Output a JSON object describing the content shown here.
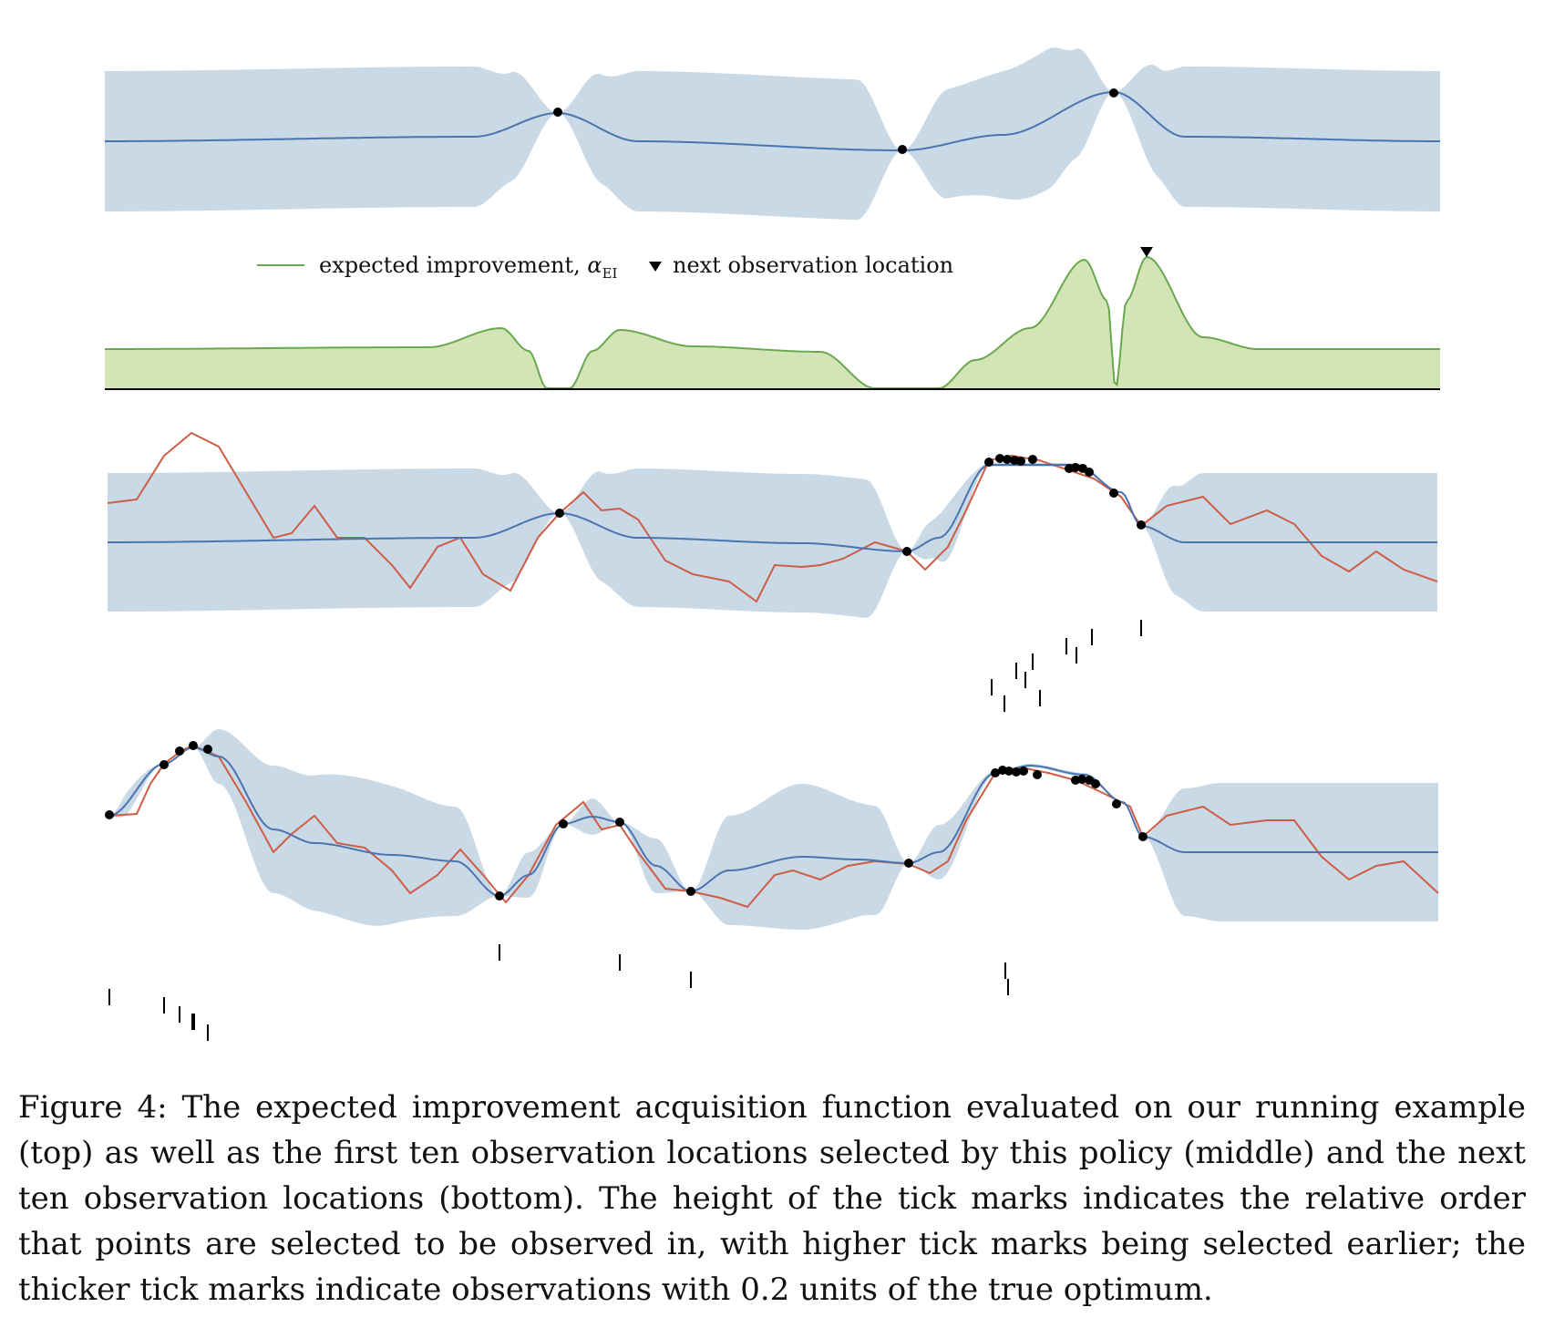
{
  "legend": {
    "ei_label": "expected improvement, ",
    "ei_symbol": "α",
    "ei_subscript": "EI",
    "next_label": "next observation location"
  },
  "caption": {
    "label": "Figure 4:",
    "text": "The expected improvement acquisition function evaluated on our running example (top) as well as the first ten observation locations selected by this policy (middle) and the next ten observation locations (bottom). The height of the tick marks indicates the relative order that points are selected to be observed in, with higher tick marks being selected earlier; the thicker tick marks indicate observations with 0.2 units of the true optimum."
  },
  "colors": {
    "band": "#c9dae6",
    "mean": "#4a74b0",
    "objective": "#cf5c45",
    "ei_fill": "#d3e5b7",
    "ei_line": "#6aa84f",
    "point": "#000000"
  },
  "chart_data": [
    {
      "panel": "top",
      "type": "line",
      "description_free": true,
      "x_range": [
        0,
        1
      ],
      "observations": [
        [
          0.342,
          0.6
        ],
        [
          0.6,
          -0.25
        ],
        [
          0.758,
          1.0
        ]
      ]
    },
    {
      "panel": "acquisition",
      "type": "area",
      "series": [
        {
          "name": "expected improvement, αEI"
        }
      ],
      "next_observation_x": 0.782
    },
    {
      "panel": "middle",
      "type": "line",
      "observations_x": [
        0.342,
        0.6,
        0.667,
        0.675,
        0.68,
        0.687,
        0.694,
        0.72,
        0.727,
        0.735,
        0.758,
        0.782
      ],
      "tick_order_x": [
        0.667,
        0.675,
        0.682,
        0.687,
        0.69,
        0.695,
        0.703,
        0.722,
        0.728,
        0.738,
        0.782
      ]
    },
    {
      "panel": "bottom",
      "type": "line",
      "observations_x": [
        0.003,
        0.044,
        0.056,
        0.067,
        0.077,
        0.295,
        0.342,
        0.386,
        0.44,
        0.603,
        0.667,
        0.758,
        0.782
      ],
      "tick_order_x": [
        0.003,
        0.044,
        0.056,
        0.067,
        0.077,
        0.295,
        0.386,
        0.44,
        0.67,
        0.672
      ]
    }
  ]
}
